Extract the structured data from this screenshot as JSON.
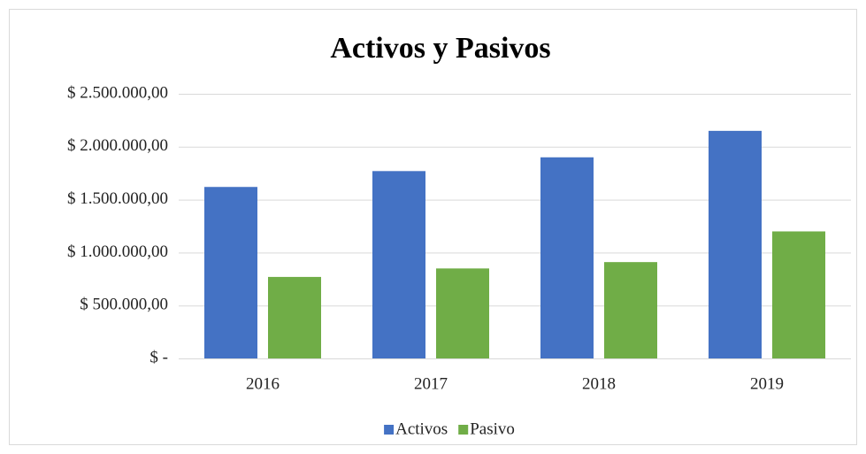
{
  "chart_data": {
    "type": "bar",
    "title": "Activos y Pasivos",
    "categories": [
      "2016",
      "2017",
      "2018",
      "2019"
    ],
    "series": [
      {
        "name": "Activos",
        "color": "#4472c4",
        "values": [
          1620000,
          1770000,
          1900000,
          2150000
        ]
      },
      {
        "name": "Pasivo",
        "color": "#70ad47",
        "values": [
          770000,
          850000,
          910000,
          1200000
        ]
      }
    ],
    "ylim": [
      0,
      2500000
    ],
    "yticks": [
      {
        "value": 0,
        "label": "$ -"
      },
      {
        "value": 500000,
        "label": "$ 500.000,00"
      },
      {
        "value": 1000000,
        "label": "$ 1.000.000,00"
      },
      {
        "value": 1500000,
        "label": "$ 1.500.000,00"
      },
      {
        "value": 2000000,
        "label": "$ 2.000.000,00"
      },
      {
        "value": 2500000,
        "label": "$ 2.500.000,00"
      }
    ],
    "grid": true,
    "legend": "bottom"
  }
}
